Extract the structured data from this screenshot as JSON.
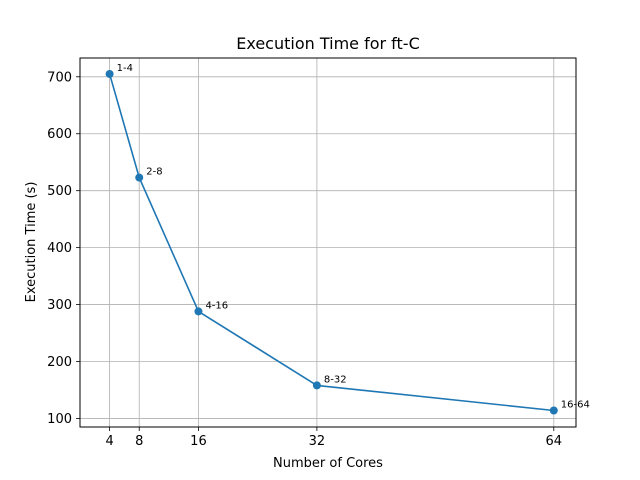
{
  "chart_data": {
    "type": "line",
    "title": "Execution Time for ft-C",
    "xlabel": "Number of Cores",
    "ylabel": "Execution Time (s)",
    "x": [
      4,
      8,
      16,
      32,
      64
    ],
    "xticks": [
      4,
      8,
      16,
      32,
      64
    ],
    "yticks": [
      100,
      200,
      300,
      400,
      500,
      600,
      700
    ],
    "xlim": [
      0,
      67
    ],
    "ylim": [
      85,
      733
    ],
    "grid": true,
    "series": [
      {
        "values": [
          705,
          523,
          288,
          158,
          114
        ],
        "point_labels": [
          "1-4",
          "2-8",
          "4-16",
          "8-32",
          "16-64"
        ],
        "color": "#1f77b4",
        "marker": "circle"
      }
    ]
  }
}
